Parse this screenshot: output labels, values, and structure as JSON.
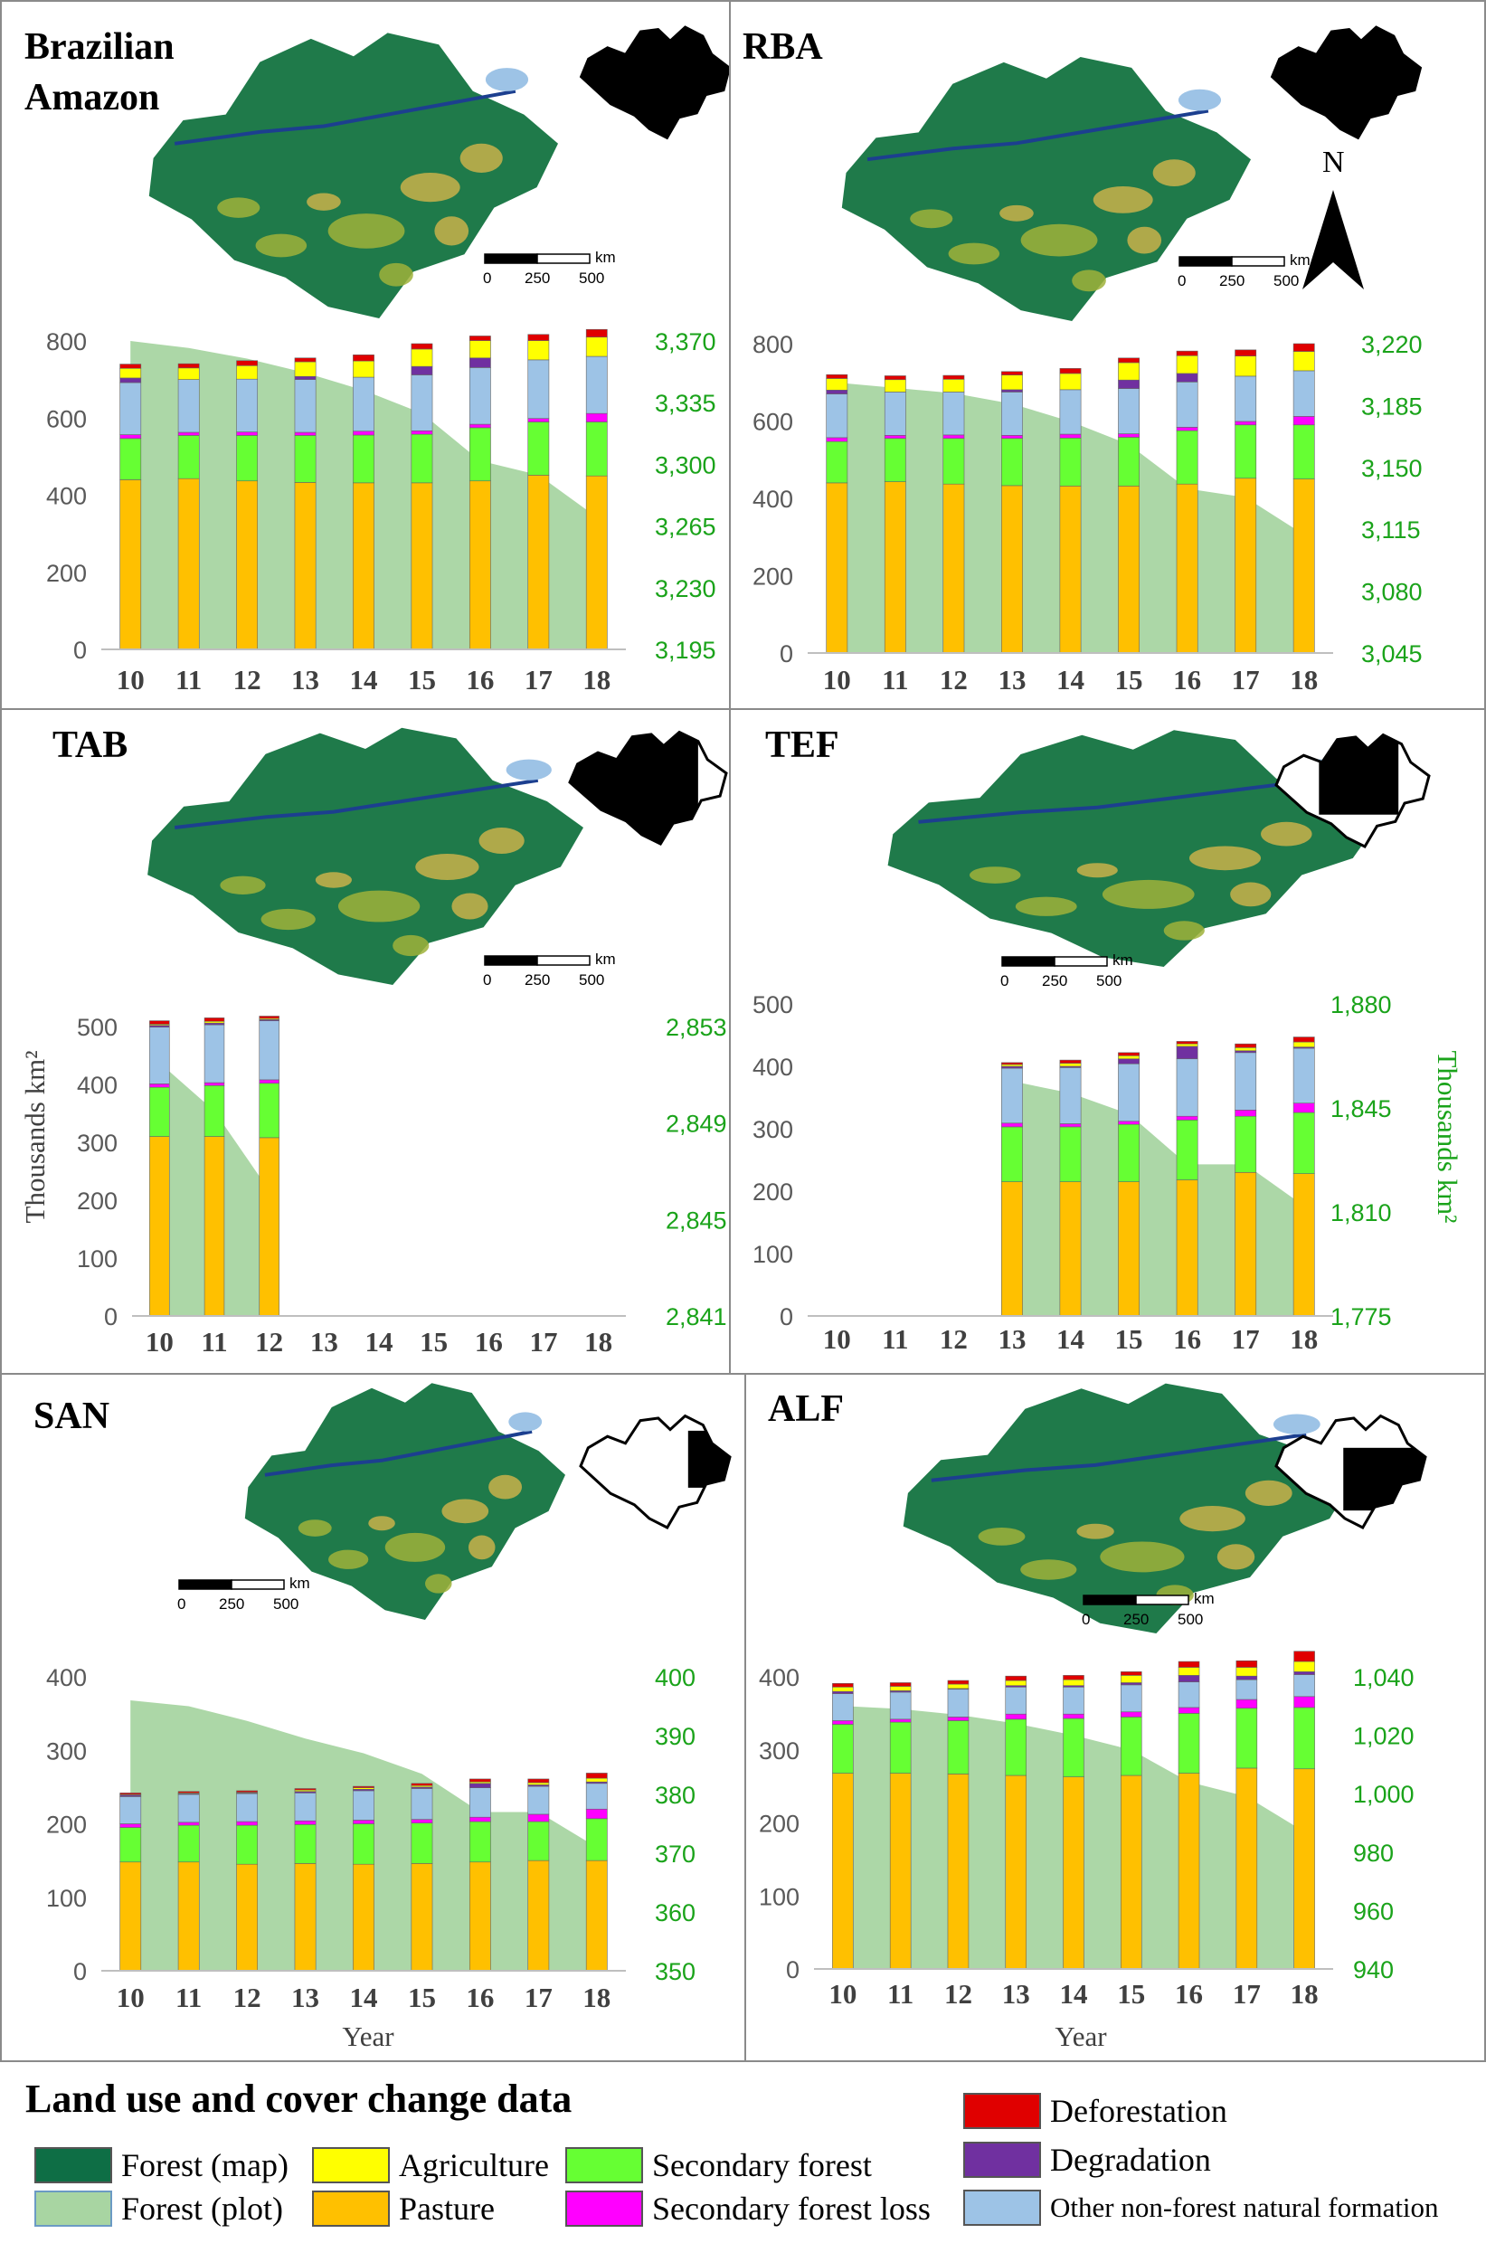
{
  "figure": {
    "y_axis_label": "Thousands km²",
    "y2_axis_label": "Thousands km²",
    "x_axis_label": "Year",
    "north_label": "N",
    "scalebar_unit": "km",
    "scalebar_ticks": [
      "0",
      "250",
      "500"
    ]
  },
  "legend": {
    "title": "Land use and cover change data",
    "items": [
      {
        "key": "forest_map",
        "label": "Forest (map)",
        "color": "#0e6e45"
      },
      {
        "key": "forest_plot",
        "label": "Forest (plot)",
        "color": "#a8d5a2"
      },
      {
        "key": "agriculture",
        "label": "Agriculture",
        "color": "#ffff00"
      },
      {
        "key": "pasture",
        "label": "Pasture",
        "color": "#ffc000"
      },
      {
        "key": "secondary_forest",
        "label": "Secondary forest",
        "color": "#66ff33"
      },
      {
        "key": "secondary_forest_loss",
        "label": "Secondary forest loss",
        "color": "#ff00ff"
      },
      {
        "key": "deforestation",
        "label": "Deforestation",
        "color": "#e00000"
      },
      {
        "key": "degradation",
        "label": "Degradation",
        "color": "#7030a0"
      },
      {
        "key": "other",
        "label": "Other non-forest natural formation",
        "color": "#9dc3e6"
      }
    ]
  },
  "chart_data": [
    {
      "type": "bar",
      "title": "Brazilian Amazon",
      "categories": [
        "10",
        "11",
        "12",
        "13",
        "14",
        "15",
        "16",
        "17",
        "18"
      ],
      "ylim": [
        0,
        800
      ],
      "yticks": [
        "0",
        "200",
        "400",
        "600",
        "800"
      ],
      "y2lim": [
        3195,
        3370
      ],
      "y2ticks": [
        "3,195",
        "3,230",
        "3,265",
        "3,300",
        "3,335",
        "3,370"
      ],
      "forest_area": [
        3370,
        3366,
        3360,
        3352,
        3342,
        3329,
        3302,
        3294,
        3270
      ],
      "series": [
        {
          "name": "Pasture",
          "values": [
            440,
            443,
            437,
            433,
            432,
            432,
            437,
            452,
            450
          ]
        },
        {
          "name": "Secondary forest",
          "values": [
            107,
            112,
            118,
            122,
            124,
            126,
            138,
            138,
            140
          ]
        },
        {
          "name": "Secondary forest loss",
          "values": [
            10,
            8,
            9,
            8,
            10,
            9,
            9,
            9,
            22
          ]
        },
        {
          "name": "Other non-forest natural formation",
          "values": [
            135,
            137,
            137,
            137,
            140,
            145,
            147,
            152,
            148
          ]
        },
        {
          "name": "Degradation",
          "values": [
            12,
            0,
            0,
            8,
            0,
            22,
            25,
            0,
            0
          ]
        },
        {
          "name": "Agriculture",
          "values": [
            25,
            30,
            35,
            38,
            42,
            45,
            45,
            50,
            50
          ]
        },
        {
          "name": "Deforestation",
          "values": [
            11,
            11,
            13,
            10,
            16,
            14,
            12,
            16,
            20
          ]
        }
      ]
    },
    {
      "type": "bar",
      "title": "RBA",
      "categories": [
        "10",
        "11",
        "12",
        "13",
        "14",
        "15",
        "16",
        "17",
        "18"
      ],
      "ylim": [
        0,
        800
      ],
      "yticks": [
        "0",
        "200",
        "400",
        "600",
        "800"
      ],
      "y2lim": [
        3045,
        3220
      ],
      "y2ticks": [
        "3,045",
        "3,080",
        "3,115",
        "3,150",
        "3,185",
        "3,220"
      ],
      "forest_area": [
        3198,
        3195,
        3192,
        3186,
        3176,
        3163,
        3138,
        3133,
        3112
      ],
      "series": [
        {
          "name": "Pasture",
          "values": [
            440,
            443,
            437,
            433,
            432,
            432,
            437,
            452,
            450
          ]
        },
        {
          "name": "Secondary forest",
          "values": [
            107,
            112,
            118,
            122,
            124,
            126,
            138,
            138,
            140
          ]
        },
        {
          "name": "Secondary forest loss",
          "values": [
            10,
            8,
            9,
            8,
            10,
            9,
            9,
            9,
            22
          ]
        },
        {
          "name": "Other non-forest natural formation",
          "values": [
            113,
            112,
            111,
            112,
            115,
            117,
            117,
            117,
            118
          ]
        },
        {
          "name": "Degradation",
          "values": [
            10,
            0,
            0,
            6,
            0,
            22,
            22,
            0,
            0
          ]
        },
        {
          "name": "Agriculture",
          "values": [
            30,
            32,
            33,
            38,
            42,
            45,
            46,
            52,
            50
          ]
        },
        {
          "name": "Deforestation",
          "values": [
            10,
            10,
            10,
            9,
            13,
            12,
            12,
            16,
            20
          ]
        }
      ]
    },
    {
      "type": "bar",
      "title": "TAB",
      "categories": [
        "10",
        "11",
        "12",
        "13",
        "14",
        "15",
        "16",
        "17",
        "18"
      ],
      "ylim": [
        0,
        500
      ],
      "yticks": [
        "0",
        "100",
        "200",
        "300",
        "400",
        "500"
      ],
      "y2lim": [
        2841,
        2853
      ],
      "y2ticks": [
        "2,841",
        "2,845",
        "2,849",
        "2,853"
      ],
      "forest_area": [
        2851.5,
        2849.5,
        2846.2,
        null,
        null,
        null,
        null,
        null,
        null
      ],
      "series": [
        {
          "name": "Pasture",
          "values": [
            310,
            310,
            308,
            null,
            null,
            null,
            null,
            null,
            null
          ]
        },
        {
          "name": "Secondary forest",
          "values": [
            85,
            88,
            94,
            null,
            null,
            null,
            null,
            null,
            null
          ]
        },
        {
          "name": "Secondary forest loss",
          "values": [
            6,
            5,
            6,
            null,
            null,
            null,
            null,
            null,
            null
          ]
        },
        {
          "name": "Other non-forest natural formation",
          "values": [
            98,
            100,
            102,
            null,
            null,
            null,
            null,
            null,
            null
          ]
        },
        {
          "name": "Degradation",
          "values": [
            3,
            3,
            2,
            null,
            null,
            null,
            null,
            null,
            null
          ]
        },
        {
          "name": "Agriculture",
          "values": [
            2,
            3,
            2,
            null,
            null,
            null,
            null,
            null,
            null
          ]
        },
        {
          "name": "Deforestation",
          "values": [
            6,
            6,
            4,
            null,
            null,
            null,
            null,
            null,
            null
          ]
        }
      ]
    },
    {
      "type": "bar",
      "title": "TEF",
      "categories": [
        "10",
        "11",
        "12",
        "13",
        "14",
        "15",
        "16",
        "17",
        "18"
      ],
      "ylim": [
        0,
        500
      ],
      "yticks": [
        "0",
        "100",
        "200",
        "300",
        "400",
        "500"
      ],
      "y2lim": [
        1775,
        1880
      ],
      "y2ticks": [
        "1,775",
        "1,810",
        "1,845",
        "1,880"
      ],
      "y2_axis_label_visible": true,
      "forest_area": [
        null,
        null,
        null,
        1854,
        1850,
        1843,
        1826,
        1826,
        1812
      ],
      "series": [
        {
          "name": "Pasture",
          "values": [
            null,
            null,
            null,
            215,
            215,
            215,
            218,
            230,
            228
          ]
        },
        {
          "name": "Secondary forest",
          "values": [
            null,
            null,
            null,
            88,
            88,
            92,
            96,
            90,
            98
          ]
        },
        {
          "name": "Secondary forest loss",
          "values": [
            null,
            null,
            null,
            6,
            5,
            5,
            6,
            10,
            15
          ]
        },
        {
          "name": "Other non-forest natural formation",
          "values": [
            null,
            null,
            null,
            88,
            90,
            92,
            92,
            92,
            88
          ]
        },
        {
          "name": "Degradation",
          "values": [
            null,
            null,
            null,
            3,
            2,
            8,
            20,
            3,
            2
          ]
        },
        {
          "name": "Agriculture",
          "values": [
            null,
            null,
            null,
            3,
            5,
            5,
            4,
            5,
            8
          ]
        },
        {
          "name": "Deforestation",
          "values": [
            null,
            null,
            null,
            3,
            5,
            5,
            4,
            6,
            8
          ]
        }
      ]
    },
    {
      "type": "bar",
      "title": "SAN",
      "categories": [
        "10",
        "11",
        "12",
        "13",
        "14",
        "15",
        "16",
        "17",
        "18"
      ],
      "ylim": [
        0,
        400
      ],
      "yticks": [
        "0",
        "100",
        "200",
        "300",
        "400"
      ],
      "y2lim": [
        350,
        400
      ],
      "y2ticks": [
        "350",
        "360",
        "370",
        "380",
        "390",
        "400"
      ],
      "forest_area": [
        396,
        395,
        392.5,
        389.5,
        387,
        383.5,
        377,
        377,
        371
      ],
      "series": [
        {
          "name": "Pasture",
          "values": [
            148,
            148,
            145,
            146,
            145,
            146,
            148,
            150,
            150
          ]
        },
        {
          "name": "Secondary forest",
          "values": [
            47,
            50,
            53,
            53,
            55,
            55,
            55,
            53,
            57
          ]
        },
        {
          "name": "Secondary forest loss",
          "values": [
            5,
            4,
            5,
            5,
            5,
            5,
            6,
            10,
            13
          ]
        },
        {
          "name": "Other non-forest natural formation",
          "values": [
            37,
            38,
            38,
            38,
            40,
            42,
            40,
            38,
            35
          ]
        },
        {
          "name": "Degradation",
          "values": [
            2,
            1,
            1,
            2,
            2,
            2,
            6,
            2,
            2
          ]
        },
        {
          "name": "Agriculture",
          "values": [
            1,
            1,
            1,
            2,
            2,
            2,
            2,
            3,
            5
          ]
        },
        {
          "name": "Deforestation",
          "values": [
            2,
            2,
            2,
            2,
            2,
            3,
            4,
            5,
            7
          ]
        }
      ]
    },
    {
      "type": "bar",
      "title": "ALF",
      "categories": [
        "10",
        "11",
        "12",
        "13",
        "14",
        "15",
        "16",
        "17",
        "18"
      ],
      "ylim": [
        0,
        400
      ],
      "yticks": [
        "0",
        "100",
        "200",
        "300",
        "400"
      ],
      "y2lim": [
        940,
        1040
      ],
      "y2ticks": [
        "940",
        "960",
        "980",
        "1,000",
        "1,020",
        "1,040"
      ],
      "forest_area": [
        1030,
        1029,
        1027,
        1024,
        1020,
        1015,
        1004,
        999,
        987
      ],
      "series": [
        {
          "name": "Pasture",
          "values": [
            268,
            268,
            267,
            265,
            263,
            265,
            268,
            275,
            274
          ]
        },
        {
          "name": "Secondary forest",
          "values": [
            67,
            70,
            73,
            77,
            80,
            80,
            82,
            82,
            84
          ]
        },
        {
          "name": "Secondary forest loss",
          "values": [
            5,
            4,
            5,
            7,
            6,
            7,
            8,
            12,
            15
          ]
        },
        {
          "name": "Other non-forest natural formation",
          "values": [
            37,
            37,
            38,
            37,
            37,
            37,
            35,
            27,
            30
          ]
        },
        {
          "name": "Degradation",
          "values": [
            3,
            2,
            1,
            2,
            2,
            3,
            9,
            5,
            4
          ]
        },
        {
          "name": "Agriculture",
          "values": [
            6,
            6,
            6,
            7,
            8,
            10,
            11,
            12,
            14
          ]
        },
        {
          "name": "Deforestation",
          "values": [
            5,
            5,
            5,
            6,
            6,
            5,
            8,
            9,
            14
          ]
        }
      ]
    }
  ]
}
